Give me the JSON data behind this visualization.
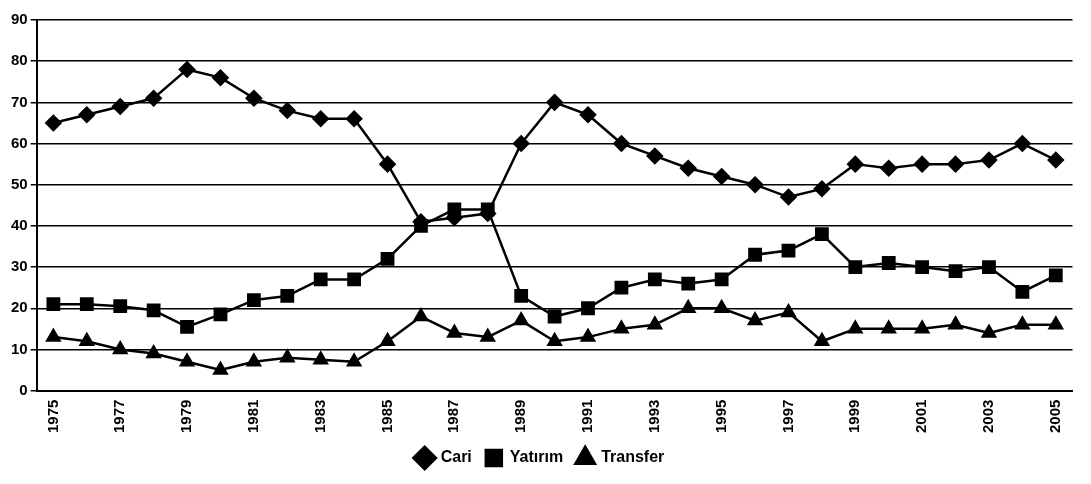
{
  "chart_data": {
    "type": "line",
    "categories": [
      "1975",
      null,
      "1977",
      null,
      "1979",
      null,
      "1981",
      null,
      "1983",
      null,
      "1985",
      null,
      "1987",
      null,
      "1989",
      null,
      "1991",
      null,
      "1993",
      null,
      "1995",
      null,
      "1997",
      null,
      "1999",
      null,
      "2001",
      null,
      "2003",
      null,
      "2005"
    ],
    "series": [
      {
        "name": "Cari",
        "color": "#000000",
        "marker": "diamond",
        "values": [
          65,
          67,
          69,
          71,
          78,
          76,
          71,
          68,
          66,
          66,
          55,
          41,
          42,
          43,
          60,
          70,
          67,
          60,
          57,
          54,
          52,
          50,
          47,
          49,
          55,
          54,
          55,
          55,
          56,
          60,
          56
        ]
      },
      {
        "name": "Yatırım",
        "color": "#000000",
        "marker": "square",
        "values": [
          21,
          21,
          20.5,
          19.5,
          15.5,
          18.5,
          22,
          23,
          27,
          27,
          32,
          40,
          44,
          44,
          23,
          18,
          20,
          25,
          27,
          26,
          27,
          33,
          34,
          38,
          30,
          31,
          30,
          29,
          30,
          24,
          28
        ]
      },
      {
        "name": "Transfer",
        "color": "#000000",
        "marker": "triangle",
        "values": [
          13,
          12,
          10,
          9,
          7,
          5,
          7,
          8,
          7.5,
          7,
          12,
          18,
          14,
          13,
          17,
          12,
          13,
          15,
          16,
          20,
          20,
          17,
          19,
          12,
          15,
          15,
          15,
          16,
          14,
          16,
          16
        ]
      }
    ],
    "ylim": [
      0,
      90
    ],
    "yticks": [
      0,
      10,
      20,
      30,
      40,
      50,
      60,
      70,
      80,
      90
    ],
    "grid": "y",
    "legend": "bottom",
    "line_style": "solid"
  }
}
